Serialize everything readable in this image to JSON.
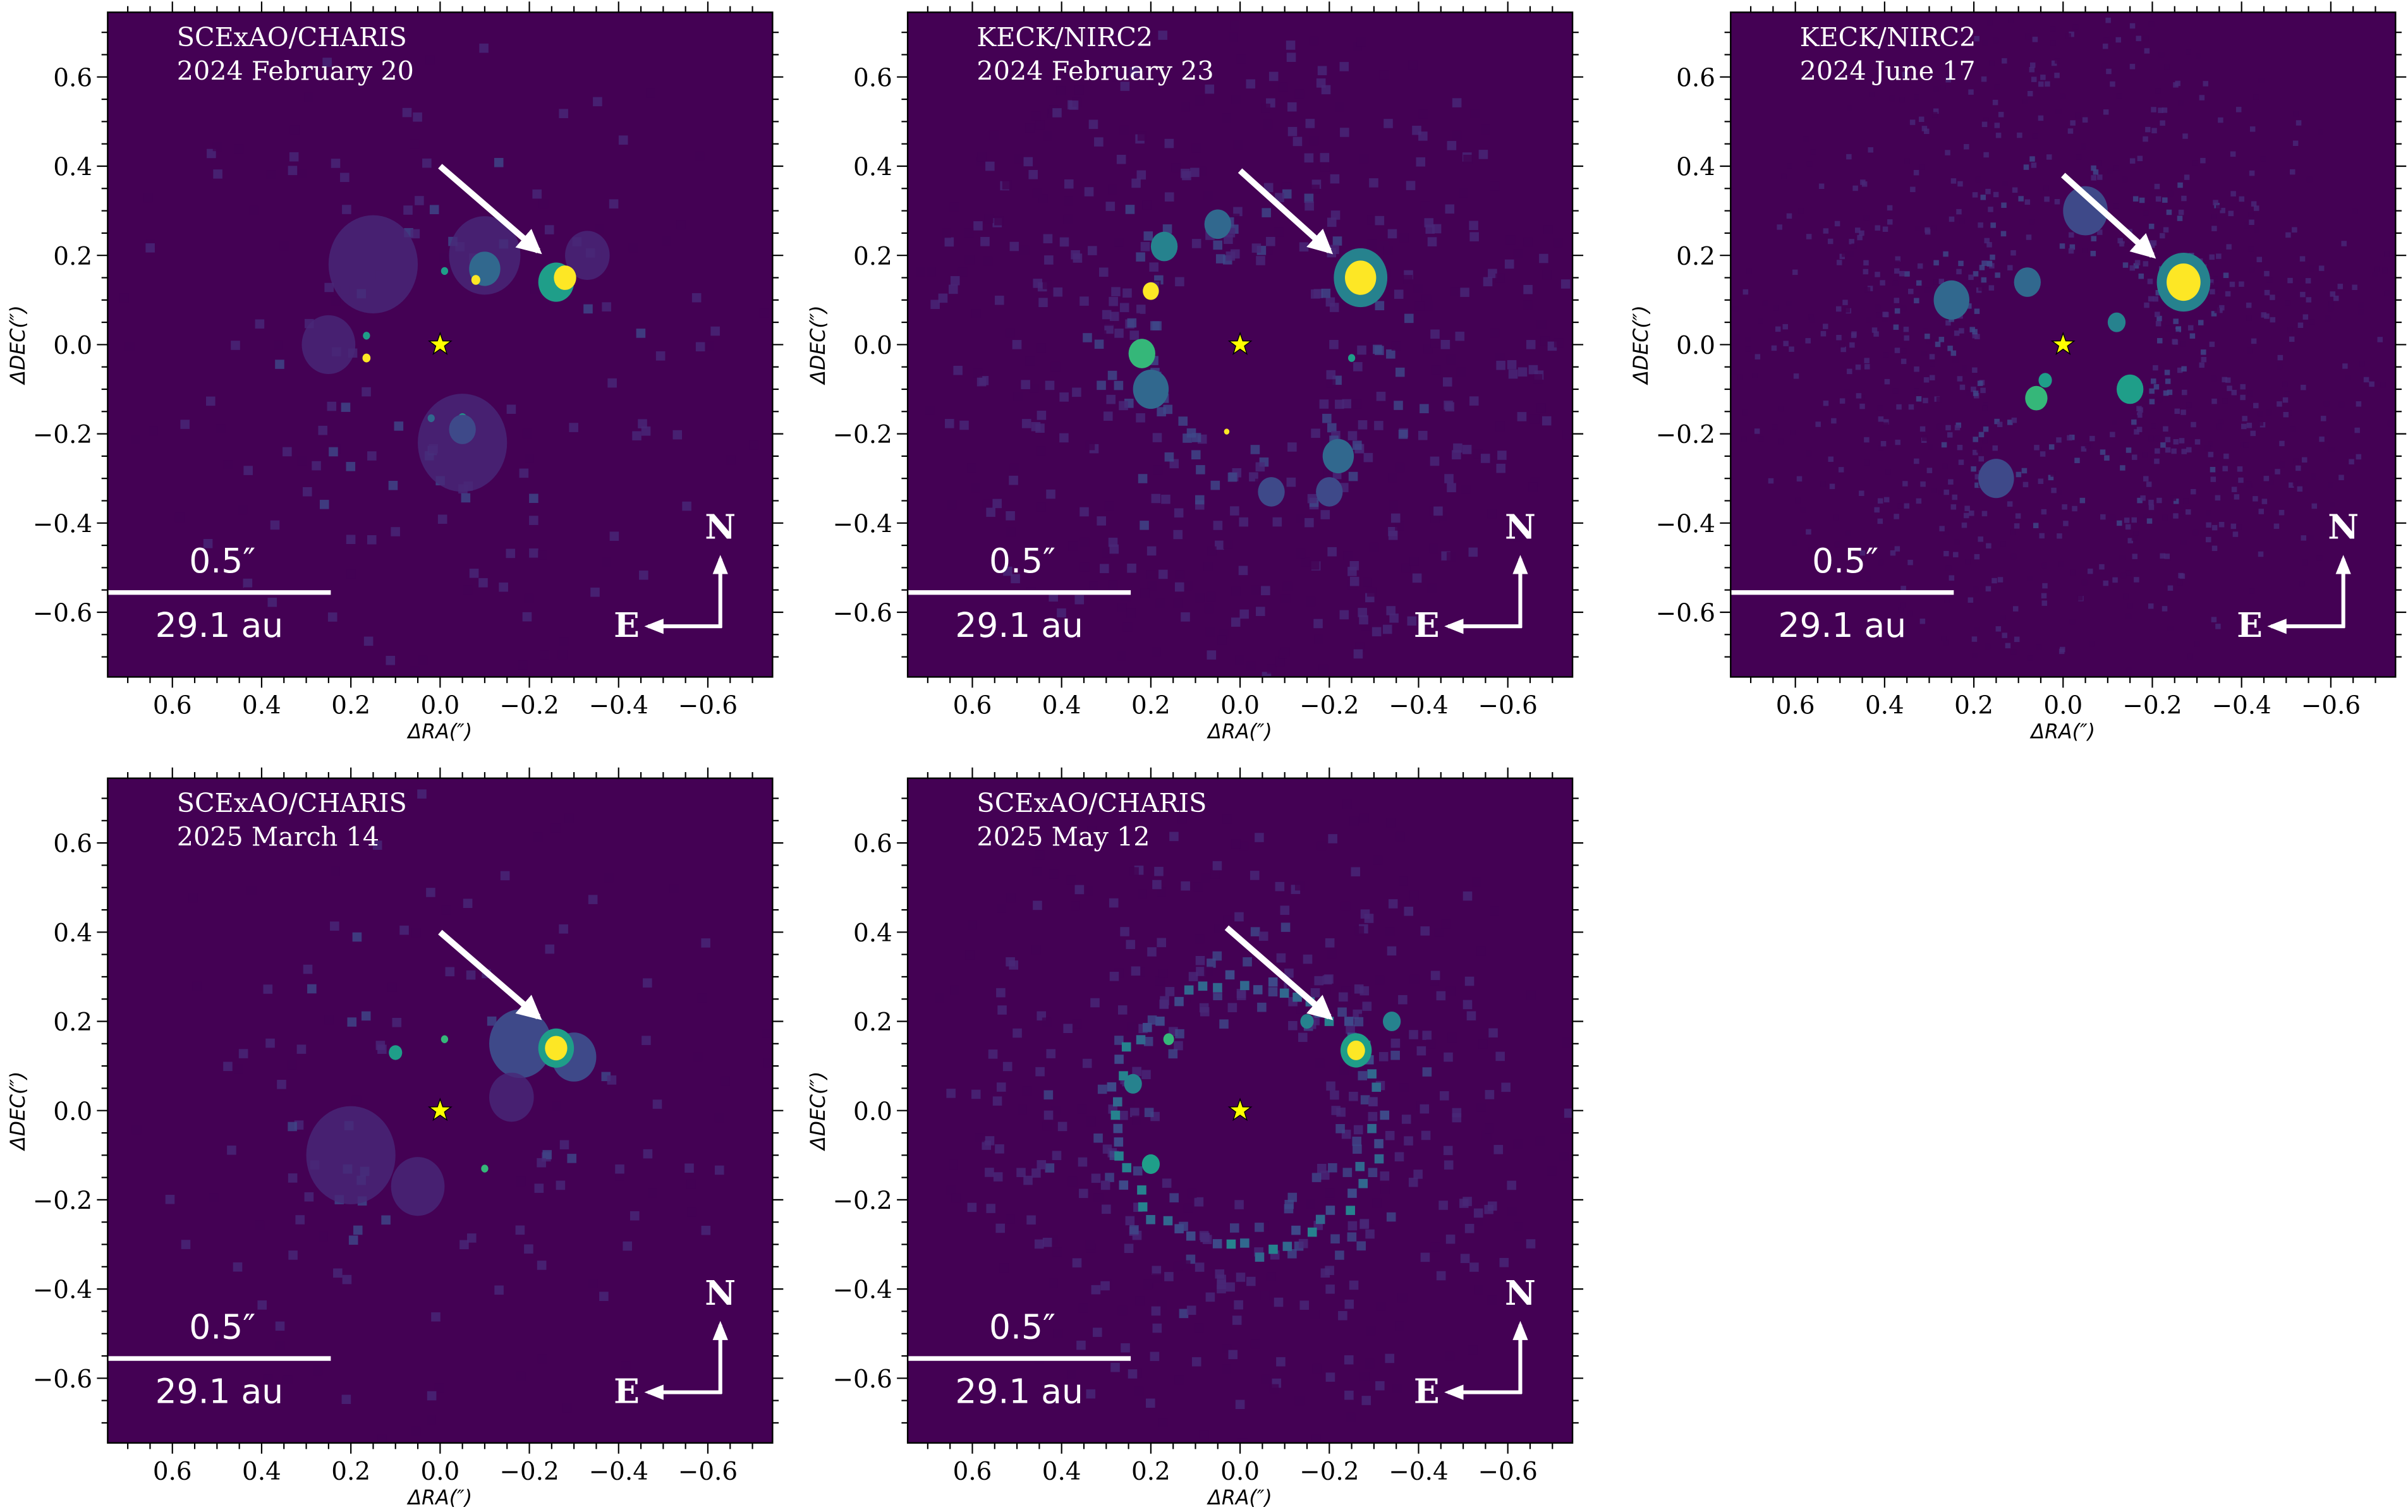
{
  "colors": {
    "background": "#440154",
    "colormap": [
      "#440154",
      "#482878",
      "#3e4989",
      "#31688e",
      "#26828e",
      "#1f9e89",
      "#35b779",
      "#6ece58",
      "#b5de2b",
      "#fde725"
    ],
    "star": "#ffff00",
    "annotation": "#ffffff"
  },
  "chart_data": [
    {
      "type": "heatmap",
      "title_lines": [
        "SCExAO/CHARIS",
        "2024 February 20"
      ],
      "xlabel": "ΔRA(″)",
      "ylabel": "ΔDEC(″)",
      "xlim": [
        0.745,
        -0.745
      ],
      "ylim": [
        -0.745,
        0.745
      ],
      "xticks": [
        0.6,
        0.4,
        0.2,
        0.0,
        -0.2,
        -0.4,
        -0.6
      ],
      "xtick_labels": [
        "0.6",
        "0.4",
        "0.2",
        "0.0",
        "−0.2",
        "−0.4",
        "−0.6"
      ],
      "yticks": [
        0.6,
        0.4,
        0.2,
        0.0,
        -0.2,
        -0.4,
        -0.6
      ],
      "ytick_labels": [
        "0.6",
        "0.4",
        "0.2",
        "0.0",
        "−0.2",
        "−0.4",
        "−0.6"
      ],
      "star": {
        "x": 0.0,
        "y": 0.0
      },
      "companion": {
        "x": -0.28,
        "y": 0.15
      },
      "arrow": {
        "from": [
          0.0,
          0.4
        ],
        "to": [
          -0.22,
          0.21
        ]
      },
      "scalebar": {
        "length_arcsec": 0.5,
        "top_label": "0.5″",
        "bottom_label": "29.1 au"
      },
      "compass": {
        "north": "N",
        "east": "E"
      },
      "spots": [
        [
          0.15,
          0.18,
          0.1,
          0.12
        ],
        [
          -0.1,
          0.2,
          0.08,
          0.15
        ],
        [
          -0.05,
          -0.22,
          0.1,
          0.12
        ],
        [
          0.25,
          0.0,
          0.06,
          0.1
        ],
        [
          -0.33,
          0.2,
          0.05,
          0.12
        ],
        [
          -0.1,
          0.17,
          0.035,
          0.35
        ],
        [
          -0.26,
          0.14,
          0.04,
          0.5
        ],
        [
          -0.28,
          0.15,
          0.025,
          1.0
        ],
        [
          -0.08,
          0.145,
          0.01,
          0.95
        ],
        [
          -0.01,
          0.165,
          0.008,
          0.5
        ],
        [
          0.165,
          -0.03,
          0.009,
          0.95
        ],
        [
          0.165,
          0.02,
          0.008,
          0.5
        ],
        [
          -0.05,
          -0.165,
          0.01,
          0.55
        ],
        [
          0.02,
          -0.165,
          0.008,
          0.35
        ],
        [
          -0.05,
          -0.19,
          0.03,
          0.2
        ]
      ]
    },
    {
      "type": "heatmap",
      "title_lines": [
        "KECK/NIRC2",
        "2024 February 23"
      ],
      "xlabel": "ΔRA(″)",
      "ylabel": "ΔDEC(″)",
      "xlim": [
        0.745,
        -0.745
      ],
      "ylim": [
        -0.745,
        0.745
      ],
      "xticks": [
        0.6,
        0.4,
        0.2,
        0.0,
        -0.2,
        -0.4,
        -0.6
      ],
      "xtick_labels": [
        "0.6",
        "0.4",
        "0.2",
        "0.0",
        "−0.2",
        "−0.4",
        "−0.6"
      ],
      "yticks": [
        0.6,
        0.4,
        0.2,
        0.0,
        -0.2,
        -0.4,
        -0.6
      ],
      "ytick_labels": [
        "0.6",
        "0.4",
        "0.2",
        "0.0",
        "−0.2",
        "−0.4",
        "−0.6"
      ],
      "star": {
        "x": 0.0,
        "y": 0.0
      },
      "companion": {
        "x": -0.27,
        "y": 0.15
      },
      "arrow": {
        "from": [
          0.0,
          0.39
        ],
        "to": [
          -0.2,
          0.21
        ]
      },
      "scalebar": {
        "length_arcsec": 0.5,
        "top_label": "0.5″",
        "bottom_label": "29.1 au"
      },
      "compass": {
        "north": "N",
        "east": "E"
      },
      "spots": [
        [
          -0.27,
          0.15,
          0.06,
          0.45
        ],
        [
          -0.27,
          0.15,
          0.035,
          1.0
        ],
        [
          0.2,
          0.12,
          0.018,
          1.0
        ],
        [
          0.22,
          -0.02,
          0.03,
          0.65
        ],
        [
          0.2,
          -0.1,
          0.04,
          0.3
        ],
        [
          0.17,
          0.22,
          0.03,
          0.4
        ],
        [
          0.05,
          0.27,
          0.03,
          0.3
        ],
        [
          -0.22,
          -0.25,
          0.035,
          0.35
        ],
        [
          -0.07,
          -0.33,
          0.03,
          0.25
        ],
        [
          -0.2,
          -0.33,
          0.03,
          0.2
        ],
        [
          0.03,
          -0.195,
          0.006,
          1.0
        ],
        [
          -0.25,
          -0.03,
          0.008,
          0.5
        ]
      ]
    },
    {
      "type": "heatmap",
      "title_lines": [
        "KECK/NIRC2",
        "2024 June 17"
      ],
      "xlabel": "ΔRA(″)",
      "ylabel": "ΔDEC(″)",
      "xlim": [
        0.745,
        -0.745
      ],
      "ylim": [
        -0.745,
        0.745
      ],
      "xticks": [
        0.6,
        0.4,
        0.2,
        0.0,
        -0.2,
        -0.4,
        -0.6
      ],
      "xtick_labels": [
        "0.6",
        "0.4",
        "0.2",
        "0.0",
        "−0.2",
        "−0.4",
        "−0.6"
      ],
      "yticks": [
        0.6,
        0.4,
        0.2,
        0.0,
        -0.2,
        -0.4,
        -0.6
      ],
      "ytick_labels": [
        "0.6",
        "0.4",
        "0.2",
        "0.0",
        "−0.2",
        "−0.4",
        "−0.6"
      ],
      "star": {
        "x": 0.0,
        "y": 0.0
      },
      "companion": {
        "x": -0.27,
        "y": 0.14
      },
      "arrow": {
        "from": [
          0.0,
          0.38
        ],
        "to": [
          -0.2,
          0.2
        ]
      },
      "scalebar": {
        "length_arcsec": 0.5,
        "top_label": "0.5″",
        "bottom_label": "29.1 au"
      },
      "compass": {
        "north": "N",
        "east": "E"
      },
      "spots": [
        [
          -0.27,
          0.14,
          0.06,
          0.45
        ],
        [
          -0.27,
          0.14,
          0.038,
          1.0
        ],
        [
          0.06,
          -0.12,
          0.025,
          0.7
        ],
        [
          0.04,
          -0.08,
          0.015,
          0.5
        ],
        [
          -0.15,
          -0.1,
          0.03,
          0.55
        ],
        [
          -0.12,
          0.05,
          0.02,
          0.45
        ],
        [
          0.25,
          0.1,
          0.04,
          0.35
        ],
        [
          0.08,
          0.14,
          0.03,
          0.3
        ],
        [
          -0.05,
          0.3,
          0.05,
          0.2
        ],
        [
          0.15,
          -0.3,
          0.04,
          0.2
        ]
      ]
    },
    {
      "type": "heatmap",
      "title_lines": [
        "SCExAO/CHARIS",
        "2025 March 14"
      ],
      "xlabel": "ΔRA(″)",
      "ylabel": "ΔDEC(″)",
      "xlim": [
        0.745,
        -0.745
      ],
      "ylim": [
        -0.745,
        0.745
      ],
      "xticks": [
        0.6,
        0.4,
        0.2,
        0.0,
        -0.2,
        -0.4,
        -0.6
      ],
      "xtick_labels": [
        "0.6",
        "0.4",
        "0.2",
        "0.0",
        "−0.2",
        "−0.4",
        "−0.6"
      ],
      "yticks": [
        0.6,
        0.4,
        0.2,
        0.0,
        -0.2,
        -0.4,
        -0.6
      ],
      "ytick_labels": [
        "0.6",
        "0.4",
        "0.2",
        "0.0",
        "−0.2",
        "−0.4",
        "−0.6"
      ],
      "star": {
        "x": 0.0,
        "y": 0.0
      },
      "companion": {
        "x": -0.26,
        "y": 0.14
      },
      "arrow": {
        "from": [
          0.0,
          0.4
        ],
        "to": [
          -0.22,
          0.21
        ]
      },
      "scalebar": {
        "length_arcsec": 0.5,
        "top_label": "0.5″",
        "bottom_label": "29.1 au"
      },
      "compass": {
        "north": "N",
        "east": "E"
      },
      "spots": [
        [
          -0.18,
          0.15,
          0.07,
          0.25
        ],
        [
          -0.3,
          0.12,
          0.05,
          0.2
        ],
        [
          -0.26,
          0.14,
          0.04,
          0.5
        ],
        [
          -0.26,
          0.14,
          0.025,
          1.0
        ],
        [
          0.1,
          0.13,
          0.015,
          0.5
        ],
        [
          -0.01,
          0.16,
          0.008,
          0.65
        ],
        [
          -0.1,
          -0.13,
          0.008,
          0.65
        ],
        [
          0.2,
          -0.1,
          0.1,
          0.14
        ],
        [
          0.05,
          -0.17,
          0.06,
          0.15
        ],
        [
          -0.16,
          0.03,
          0.05,
          0.12
        ]
      ]
    },
    {
      "type": "heatmap",
      "title_lines": [
        "SCExAO/CHARIS",
        "2025 May 12"
      ],
      "xlabel": "ΔRA(″)",
      "ylabel": "ΔDEC(″)",
      "xlim": [
        0.745,
        -0.745
      ],
      "ylim": [
        -0.745,
        0.745
      ],
      "xticks": [
        0.6,
        0.4,
        0.2,
        0.0,
        -0.2,
        -0.4,
        -0.6
      ],
      "xtick_labels": [
        "0.6",
        "0.4",
        "0.2",
        "0.0",
        "−0.2",
        "−0.4",
        "−0.6"
      ],
      "yticks": [
        0.6,
        0.4,
        0.2,
        0.0,
        -0.2,
        -0.4,
        -0.6
      ],
      "ytick_labels": [
        "0.6",
        "0.4",
        "0.2",
        "0.0",
        "−0.2",
        "−0.4",
        "−0.6"
      ],
      "star": {
        "x": 0.0,
        "y": 0.0
      },
      "companion": {
        "x": -0.26,
        "y": 0.135
      },
      "arrow": {
        "from": [
          0.03,
          0.41
        ],
        "to": [
          -0.2,
          0.21
        ]
      },
      "scalebar": {
        "length_arcsec": 0.5,
        "top_label": "0.5″",
        "bottom_label": "29.1 au"
      },
      "compass": {
        "north": "N",
        "east": "E"
      },
      "spots": [
        [
          -0.26,
          0.135,
          0.035,
          0.5
        ],
        [
          -0.26,
          0.135,
          0.02,
          1.0
        ],
        [
          0.16,
          0.16,
          0.012,
          0.7
        ],
        [
          0.24,
          0.06,
          0.02,
          0.45
        ],
        [
          0.2,
          -0.12,
          0.02,
          0.5
        ],
        [
          -0.34,
          0.2,
          0.02,
          0.4
        ],
        [
          -0.15,
          0.2,
          0.015,
          0.45
        ]
      ]
    }
  ]
}
